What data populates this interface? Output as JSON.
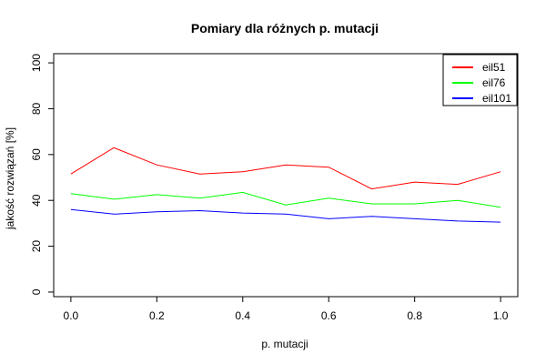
{
  "chart_data": {
    "type": "line",
    "title": "Pomiary dla różnych p. mutacji",
    "xlabel": "p. mutacji",
    "ylabel": "jakość rozwiązań [%]",
    "xlim": [
      -0.04,
      1.04
    ],
    "ylim": [
      -2,
      104
    ],
    "x_ticks": [
      "0.0",
      "0.2",
      "0.4",
      "0.6",
      "0.8",
      "1.0"
    ],
    "y_ticks": [
      "0",
      "20",
      "40",
      "60",
      "80",
      "100"
    ],
    "x": [
      0.0,
      0.1,
      0.2,
      0.3,
      0.4,
      0.5,
      0.6,
      0.7,
      0.8,
      0.9,
      1.0
    ],
    "legend_position": "top-right",
    "grid": false,
    "series": [
      {
        "name": "eil51",
        "color": "#ff0000",
        "values": [
          51.5,
          63.0,
          55.5,
          51.5,
          52.5,
          55.5,
          54.5,
          45.0,
          48.0,
          47.0,
          52.5
        ]
      },
      {
        "name": "eil76",
        "color": "#00ff00",
        "values": [
          43.0,
          40.5,
          42.5,
          41.0,
          43.5,
          38.0,
          41.0,
          38.5,
          38.5,
          40.0,
          37.0
        ]
      },
      {
        "name": "eil101",
        "color": "#0000ff",
        "values": [
          36.0,
          34.0,
          35.0,
          35.5,
          34.5,
          34.0,
          32.0,
          33.0,
          32.0,
          31.0,
          30.5
        ]
      }
    ]
  }
}
